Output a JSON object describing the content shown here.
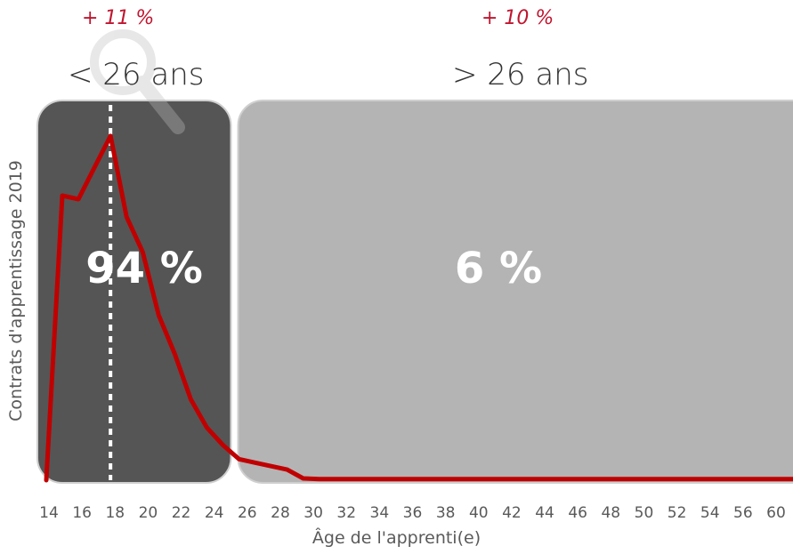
{
  "chart_data": {
    "type": "line",
    "title": "",
    "xlabel": "Âge de l'apprenti(e)",
    "ylabel": "Contrats d'apprentissage 2019",
    "x_ticks": [
      "14",
      "16",
      "18",
      "20",
      "22",
      "24",
      "26",
      "28",
      "30",
      "32",
      "34",
      "36",
      "38",
      "40",
      "42",
      "44",
      "46",
      "48",
      "50",
      "52",
      "54",
      "56",
      "60"
    ],
    "xlim": [
      14,
      61
    ],
    "ylim": [
      0,
      100
    ],
    "grid": false,
    "series": [
      {
        "color": "#c00000",
        "x": [
          14,
          15,
          16,
          17,
          18,
          19,
          20,
          21,
          22,
          23,
          24,
          25,
          26,
          27,
          28,
          29,
          30,
          31,
          32,
          35,
          40,
          45,
          50,
          55,
          61
        ],
        "y": [
          0,
          81,
          80,
          89,
          98,
          75,
          65,
          47,
          36,
          23,
          15,
          10,
          6,
          5,
          4,
          3,
          0.5,
          0.3,
          0.3,
          0.3,
          0.3,
          0.3,
          0.3,
          0.3,
          0.3
        ]
      }
    ],
    "reference_line": {
      "x": 18,
      "style": "dotted",
      "color": "#ffffff"
    },
    "groups": [
      {
        "label": "< 26 ans",
        "share": "94 %",
        "growth": "+ 11 %",
        "x_from": 14,
        "x_to": 25.5,
        "color": "#555555"
      },
      {
        "label": "> 26 ans",
        "share": "6 %",
        "growth": "+ 10 %",
        "x_from": 26.5,
        "x_to": 61,
        "color": "#b4b4b4"
      }
    ]
  },
  "icons": {
    "magnifier": "magnifier-icon"
  }
}
